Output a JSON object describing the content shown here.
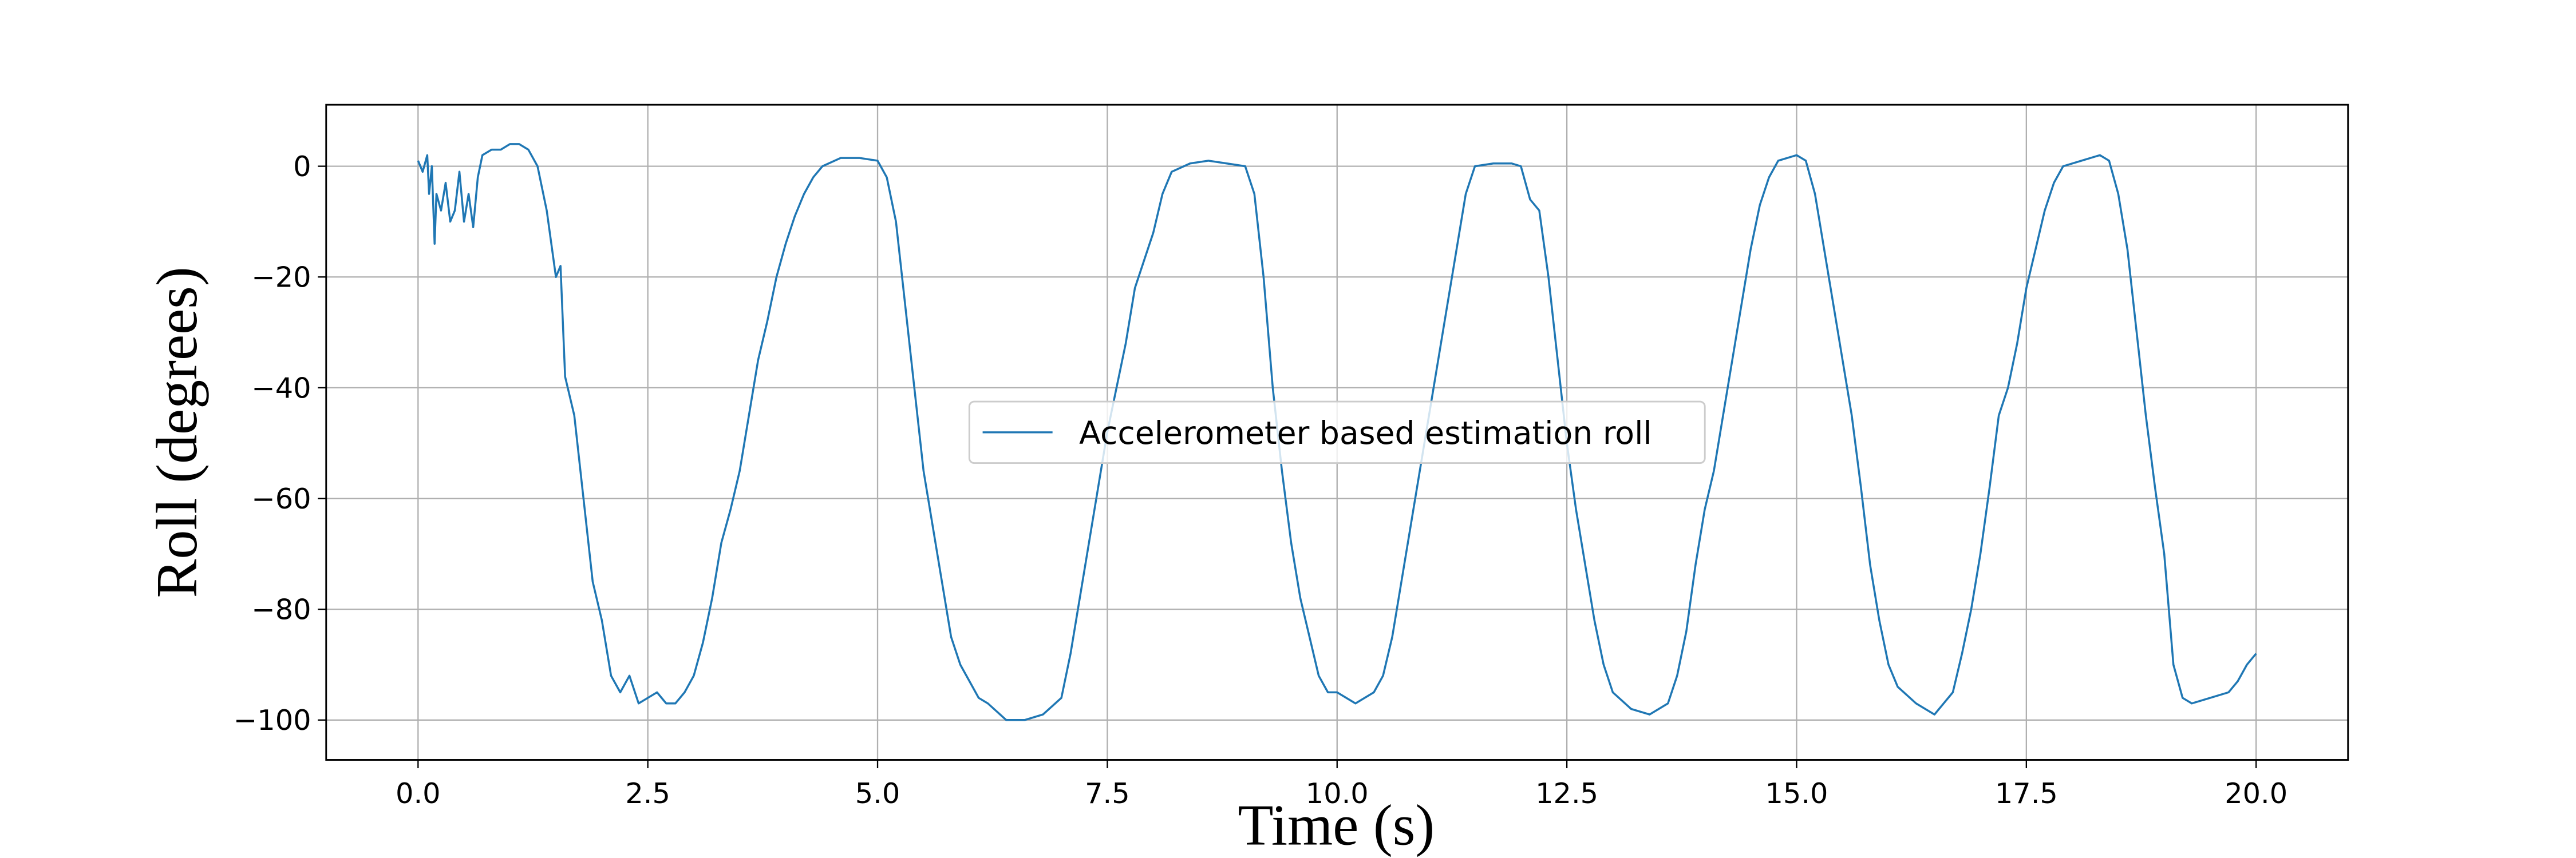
{
  "chart_data": {
    "type": "line",
    "xlabel": "Time (s)",
    "ylabel": "Roll (degrees)",
    "x": [
      0.0,
      0.05,
      0.1,
      0.12,
      0.15,
      0.18,
      0.2,
      0.25,
      0.3,
      0.35,
      0.4,
      0.45,
      0.5,
      0.55,
      0.6,
      0.65,
      0.7,
      0.8,
      0.9,
      1.0,
      1.1,
      1.2,
      1.3,
      1.4,
      1.5,
      1.55,
      1.6,
      1.7,
      1.8,
      1.9,
      2.0,
      2.1,
      2.2,
      2.3,
      2.4,
      2.5,
      2.6,
      2.7,
      2.8,
      2.9,
      3.0,
      3.1,
      3.2,
      3.3,
      3.4,
      3.5,
      3.6,
      3.7,
      3.8,
      3.9,
      4.0,
      4.1,
      4.2,
      4.3,
      4.4,
      4.6,
      4.8,
      5.0,
      5.1,
      5.2,
      5.3,
      5.4,
      5.5,
      5.6,
      5.7,
      5.8,
      5.9,
      6.0,
      6.1,
      6.2,
      6.4,
      6.6,
      6.8,
      7.0,
      7.1,
      7.2,
      7.3,
      7.4,
      7.5,
      7.6,
      7.7,
      7.8,
      7.9,
      8.0,
      8.1,
      8.2,
      8.4,
      8.6,
      8.8,
      9.0,
      9.1,
      9.2,
      9.3,
      9.4,
      9.5,
      9.6,
      9.7,
      9.8,
      9.9,
      10.0,
      10.2,
      10.4,
      10.5,
      10.6,
      10.7,
      10.8,
      10.9,
      11.0,
      11.1,
      11.2,
      11.3,
      11.4,
      11.5,
      11.7,
      11.9,
      12.0,
      12.1,
      12.2,
      12.3,
      12.4,
      12.5,
      12.6,
      12.7,
      12.8,
      12.9,
      13.0,
      13.2,
      13.4,
      13.6,
      13.7,
      13.8,
      13.9,
      14.0,
      14.1,
      14.2,
      14.3,
      14.4,
      14.5,
      14.6,
      14.7,
      14.8,
      15.0,
      15.1,
      15.2,
      15.3,
      15.4,
      15.5,
      15.6,
      15.7,
      15.8,
      15.9,
      16.0,
      16.1,
      16.3,
      16.5,
      16.6,
      16.7,
      16.8,
      16.9,
      17.0,
      17.1,
      17.2,
      17.3,
      17.4,
      17.5,
      17.6,
      17.7,
      17.8,
      17.9,
      18.1,
      18.3,
      18.4,
      18.5,
      18.6,
      18.7,
      18.8,
      18.9,
      19.0,
      19.1,
      19.2,
      19.3,
      19.5,
      19.7,
      19.8,
      19.9,
      20.0
    ],
    "series": [
      {
        "name": "Accelerometer based estimation roll",
        "color": "#1f77b4",
        "values": [
          1,
          -1,
          2,
          -5,
          0,
          -14,
          -5,
          -8,
          -3,
          -10,
          -8,
          -1,
          -10,
          -5,
          -11,
          -2,
          2,
          3,
          3,
          4,
          4,
          3,
          0,
          -8,
          -20,
          -18,
          -38,
          -45,
          -60,
          -75,
          -82,
          -92,
          -95,
          -92,
          -97,
          -96,
          -95,
          -97,
          -97,
          -95,
          -92,
          -86,
          -78,
          -68,
          -62,
          -55,
          -45,
          -35,
          -28,
          -20,
          -14,
          -9,
          -5,
          -2,
          0,
          1.5,
          1.5,
          1,
          -2,
          -10,
          -25,
          -40,
          -55,
          -65,
          -75,
          -85,
          -90,
          -93,
          -96,
          -97,
          -100,
          -100,
          -99,
          -96,
          -88,
          -78,
          -68,
          -58,
          -48,
          -40,
          -32,
          -22,
          -17,
          -12,
          -5,
          -1,
          0.5,
          1,
          0.5,
          0,
          -5,
          -20,
          -40,
          -55,
          -68,
          -78,
          -85,
          -92,
          -95,
          -95,
          -97,
          -95,
          -92,
          -85,
          -75,
          -65,
          -55,
          -45,
          -35,
          -25,
          -15,
          -5,
          0,
          0.5,
          0.5,
          0,
          -6,
          -8,
          -20,
          -35,
          -50,
          -62,
          -72,
          -82,
          -90,
          -95,
          -98,
          -99,
          -97,
          -92,
          -84,
          -72,
          -62,
          -55,
          -45,
          -35,
          -25,
          -15,
          -7,
          -2,
          1,
          2,
          1,
          -5,
          -15,
          -25,
          -35,
          -45,
          -58,
          -72,
          -82,
          -90,
          -94,
          -97,
          -99,
          -97,
          -95,
          -88,
          -80,
          -70,
          -58,
          -45,
          -40,
          -32,
          -22,
          -15,
          -8,
          -3,
          0,
          1,
          2,
          1,
          -5,
          -15,
          -30,
          -45,
          -58,
          -70,
          -90,
          -96,
          -97,
          -96,
          -95,
          -93,
          -90,
          -88
        ]
      }
    ],
    "xlim": [
      -1.0,
      21.0
    ],
    "ylim": [
      -107.2,
      11.1
    ],
    "xticks": [
      {
        "value": 0,
        "label": "0.0"
      },
      2.5,
      {
        "value": 5,
        "label": "5.0"
      },
      7.5,
      {
        "value": 10,
        "label": "10.0"
      },
      12.5,
      {
        "value": 15,
        "label": "15.0"
      },
      17.5,
      {
        "value": 20,
        "label": "20.0"
      }
    ],
    "yticks": [
      {
        "value": -100,
        "label": "−100"
      },
      {
        "value": -80,
        "label": "−80"
      },
      {
        "value": -60,
        "label": "−60"
      },
      {
        "value": -40,
        "label": "−40"
      },
      {
        "value": -20,
        "label": "−20"
      },
      0
    ],
    "grid": true,
    "legend_loc": "center"
  }
}
